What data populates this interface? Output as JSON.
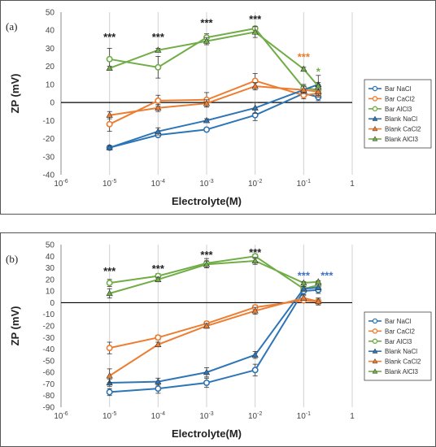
{
  "colors": {
    "bar_nacl": "#2e75b6",
    "bar_cacl2": "#ed7d31",
    "bar_alcl3": "#70ad47",
    "blank_nacl": "#2e75b6",
    "blank_cacl2": "#ed7d31",
    "blank_alcl3": "#70ad47",
    "sig_black": "#222222",
    "sig_orange": "#ed7d31",
    "sig_green": "#70ad47",
    "sig_blue": "#4472c4"
  },
  "chart_data": [
    {
      "type": "line",
      "panel_label": "(a)",
      "xlabel": "Electrolyte(M)",
      "ylabel": "ZP (mV)",
      "xscale": "log",
      "xlim": [
        1e-06,
        1
      ],
      "ylim": [
        -40,
        50
      ],
      "yticks": [
        -40,
        -30,
        -20,
        -10,
        0,
        10,
        20,
        30,
        40,
        50
      ],
      "xtick_labels": [
        "10-6",
        "10-5",
        "10-4",
        "10-3",
        "10-2",
        "10-1",
        "1"
      ],
      "grid": "vertical",
      "legend_position": "right",
      "legend": [
        "Bar NaCl",
        "Bar CaCl2",
        "Bar AlCl3",
        "Blank NaCl",
        "Blank CaCl2",
        "Blank AlCl3"
      ],
      "series": [
        {
          "name": "Bar NaCl",
          "marker": "circle",
          "color_key": "bar_nacl",
          "x": [
            1e-05,
            0.0001,
            0.001,
            0.01,
            0.1,
            0.2
          ],
          "y": [
            -25,
            -18,
            -15,
            -7,
            5,
            3
          ],
          "err": [
            1,
            1,
            1,
            3,
            2,
            2
          ]
        },
        {
          "name": "Bar CaCl2",
          "marker": "circle",
          "color_key": "bar_cacl2",
          "x": [
            1e-05,
            0.0001,
            0.001,
            0.01,
            0.1,
            0.2
          ],
          "y": [
            -12,
            1,
            1.5,
            12,
            4,
            5
          ],
          "err": [
            4,
            3,
            4,
            4,
            2,
            2
          ]
        },
        {
          "name": "Bar AlCl3",
          "marker": "circle",
          "color_key": "bar_alcl3",
          "x": [
            1e-05,
            0.0001,
            0.001,
            0.01,
            0.1,
            0.2
          ],
          "y": [
            24,
            19.5,
            36,
            41,
            8,
            7
          ],
          "err": [
            6,
            6,
            2,
            1,
            2,
            3
          ]
        },
        {
          "name": "Blank NaCl",
          "marker": "triangle",
          "color_key": "blank_nacl",
          "x": [
            1e-05,
            0.0001,
            0.001,
            0.01,
            0.1,
            0.2
          ],
          "y": [
            -25,
            -16,
            -10,
            -3,
            7,
            10
          ],
          "err": [
            1,
            2,
            1,
            3,
            2,
            5
          ]
        },
        {
          "name": "Blank CaCl2",
          "marker": "triangle",
          "color_key": "blank_cacl2",
          "x": [
            1e-05,
            0.0001,
            0.001,
            0.01,
            0.1,
            0.2
          ],
          "y": [
            -7,
            -3,
            -0.5,
            9,
            7,
            6
          ],
          "err": [
            2,
            2,
            2,
            2,
            2,
            2
          ]
        },
        {
          "name": "Blank AlCl3",
          "marker": "triangle",
          "color_key": "blank_alcl3",
          "x": [
            1e-05,
            0.0001,
            0.001,
            0.01,
            0.1,
            0.2
          ],
          "y": [
            19,
            29,
            34,
            39,
            18.5,
            9
          ],
          "err": [
            1,
            1,
            2,
            3,
            1,
            2
          ]
        }
      ],
      "annotations": [
        {
          "text": "***",
          "x": 1e-05,
          "y": 36,
          "color_key": "sig_black"
        },
        {
          "text": "***",
          "x": 0.0001,
          "y": 36,
          "color_key": "sig_black"
        },
        {
          "text": "***",
          "x": 0.001,
          "y": 44,
          "color_key": "sig_black"
        },
        {
          "text": "***",
          "x": 0.01,
          "y": 46,
          "color_key": "sig_black"
        },
        {
          "text": "***",
          "x": 0.1,
          "y": 25,
          "color_key": "sig_orange"
        },
        {
          "text": "*",
          "x": 0.2,
          "y": 17,
          "color_key": "sig_green"
        }
      ]
    },
    {
      "type": "line",
      "panel_label": "(b)",
      "xlabel": "Electrolyte(M)",
      "ylabel": "ZP (mV)",
      "xscale": "log",
      "xlim": [
        1e-06,
        1
      ],
      "ylim": [
        -90,
        50
      ],
      "yticks": [
        -90,
        -80,
        -70,
        -60,
        -50,
        -40,
        -30,
        -20,
        -10,
        0,
        10,
        20,
        30,
        40,
        50
      ],
      "xtick_labels": [
        "10-6",
        "10-5",
        "10-4",
        "10-3",
        "10-2",
        "10-1",
        "1"
      ],
      "grid": "vertical",
      "legend_position": "right",
      "legend": [
        "Bar NaCl",
        "Bar CaCl2",
        "Bar AlCl3",
        "Blank NaCl",
        "Blank CaCl2",
        "Blank AlCl3"
      ],
      "series": [
        {
          "name": "Bar NaCl",
          "marker": "circle",
          "color_key": "bar_nacl",
          "x": [
            1e-05,
            0.0001,
            0.001,
            0.01,
            0.1,
            0.2
          ],
          "y": [
            -77,
            -74,
            -69,
            -58,
            10,
            11
          ],
          "err": [
            3,
            4,
            4,
            5,
            3,
            3
          ]
        },
        {
          "name": "Bar CaCl2",
          "marker": "circle",
          "color_key": "bar_cacl2",
          "x": [
            1e-05,
            0.0001,
            0.001,
            0.01,
            0.1,
            0.2
          ],
          "y": [
            -39,
            -30,
            -18,
            -4,
            2,
            1
          ],
          "err": [
            5,
            2,
            2,
            2,
            2,
            2
          ]
        },
        {
          "name": "Bar AlCl3",
          "marker": "circle",
          "color_key": "bar_alcl3",
          "x": [
            1e-05,
            0.0001,
            0.001,
            0.01,
            0.1,
            0.2
          ],
          "y": [
            17,
            23,
            34,
            40,
            12,
            15
          ],
          "err": [
            3,
            2,
            4,
            2,
            2,
            2
          ]
        },
        {
          "name": "Blank NaCl",
          "marker": "triangle",
          "color_key": "blank_nacl",
          "x": [
            1e-05,
            0.0001,
            0.001,
            0.01,
            0.1,
            0.2
          ],
          "y": [
            -69,
            -68,
            -60,
            -45,
            12,
            13
          ],
          "err": [
            3,
            3,
            4,
            3,
            2,
            2
          ]
        },
        {
          "name": "Blank CaCl2",
          "marker": "triangle",
          "color_key": "blank_cacl2",
          "x": [
            1e-05,
            0.0001,
            0.001,
            0.01,
            0.1,
            0.2
          ],
          "y": [
            -63,
            -36,
            -20,
            -7,
            4,
            1
          ],
          "err": [
            6,
            2,
            2,
            3,
            2,
            3
          ]
        },
        {
          "name": "Blank AlCl3",
          "marker": "triangle",
          "color_key": "blank_alcl3",
          "x": [
            1e-05,
            0.0001,
            0.001,
            0.01,
            0.1,
            0.2
          ],
          "y": [
            8,
            20,
            33,
            36,
            17,
            18
          ],
          "err": [
            4,
            2,
            3,
            3,
            1,
            1
          ]
        }
      ],
      "annotations": [
        {
          "text": "***",
          "x": 1e-05,
          "y": 27,
          "color_key": "sig_black"
        },
        {
          "text": "***",
          "x": 0.0001,
          "y": 29,
          "color_key": "sig_black"
        },
        {
          "text": "***",
          "x": 0.001,
          "y": 41,
          "color_key": "sig_black"
        },
        {
          "text": "***",
          "x": 0.01,
          "y": 43,
          "color_key": "sig_black"
        },
        {
          "text": "***",
          "x": 0.1,
          "y": 23,
          "color_key": "sig_blue"
        },
        {
          "text": "***",
          "x": 0.3,
          "y": 23,
          "color_key": "sig_blue"
        }
      ]
    }
  ]
}
